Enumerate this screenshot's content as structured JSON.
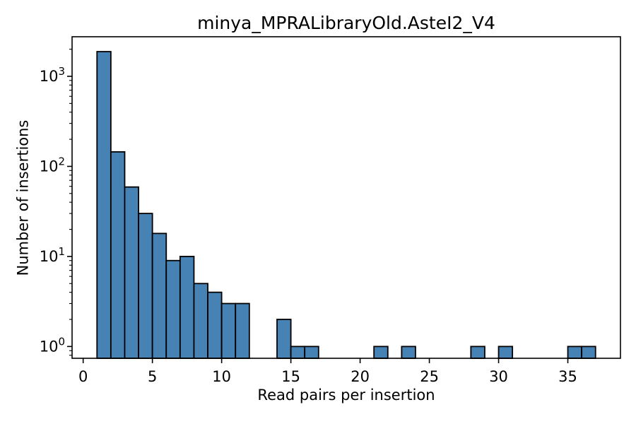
{
  "chart_data": {
    "type": "bar",
    "subtype": "histogram",
    "title": "minya_MPRALibraryOld.AsteI2_V4",
    "xlabel": "Read pairs per insertion",
    "ylabel": "Number of insertions",
    "yscale": "log",
    "grid": false,
    "legend": null,
    "xlim": [
      -0.8,
      38.8
    ],
    "ylim": [
      0.74,
      2750
    ],
    "bin_width": 1,
    "xticks": [
      {
        "value": 0,
        "label": "0"
      },
      {
        "value": 5,
        "label": "5"
      },
      {
        "value": 10,
        "label": "10"
      },
      {
        "value": 15,
        "label": "15"
      },
      {
        "value": 20,
        "label": "20"
      },
      {
        "value": 25,
        "label": "25"
      },
      {
        "value": 30,
        "label": "30"
      },
      {
        "value": 35,
        "label": "35"
      }
    ],
    "yticks": [
      {
        "value": 1,
        "base": "10",
        "exponent": "0"
      },
      {
        "value": 10,
        "base": "10",
        "exponent": "1"
      },
      {
        "value": 100,
        "base": "10",
        "exponent": "2"
      },
      {
        "value": 1000,
        "base": "10",
        "exponent": "3"
      }
    ],
    "bars": [
      {
        "start": 1,
        "end": 2,
        "count": 1880
      },
      {
        "start": 2,
        "end": 3,
        "count": 145
      },
      {
        "start": 3,
        "end": 4,
        "count": 59
      },
      {
        "start": 4,
        "end": 5,
        "count": 30
      },
      {
        "start": 5,
        "end": 6,
        "count": 18
      },
      {
        "start": 6,
        "end": 7,
        "count": 9
      },
      {
        "start": 7,
        "end": 8,
        "count": 10
      },
      {
        "start": 8,
        "end": 9,
        "count": 5
      },
      {
        "start": 9,
        "end": 10,
        "count": 4
      },
      {
        "start": 10,
        "end": 11,
        "count": 3
      },
      {
        "start": 11,
        "end": 12,
        "count": 3
      },
      {
        "start": 14,
        "end": 15,
        "count": 2
      },
      {
        "start": 15,
        "end": 16,
        "count": 1
      },
      {
        "start": 16,
        "end": 17,
        "count": 1
      },
      {
        "start": 21,
        "end": 22,
        "count": 1
      },
      {
        "start": 23,
        "end": 24,
        "count": 1
      },
      {
        "start": 28,
        "end": 29,
        "count": 1
      },
      {
        "start": 30,
        "end": 31,
        "count": 1
      },
      {
        "start": 35,
        "end": 36,
        "count": 1
      },
      {
        "start": 36,
        "end": 37,
        "count": 1
      }
    ],
    "colors": {
      "bar_fill": "#4682b4",
      "bar_edge": "#000000",
      "axis": "#000000",
      "text": "#000000",
      "background": "#ffffff"
    }
  }
}
